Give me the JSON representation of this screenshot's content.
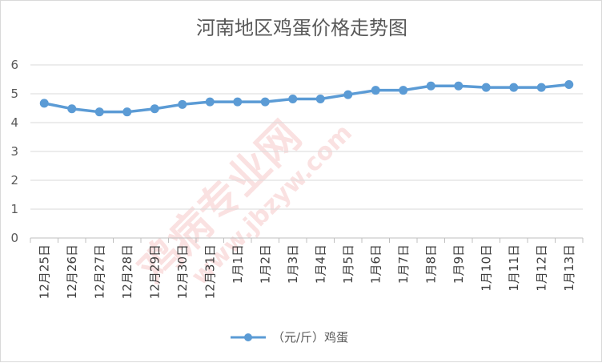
{
  "chart_data": {
    "type": "line",
    "title": "河南地区鸡蛋价格走势图",
    "categories": [
      "12月25日",
      "12月26日",
      "12月27日",
      "12月28日",
      "12月29日",
      "12月30日",
      "12月31日",
      "1月1日",
      "1月2日",
      "1月3日",
      "1月4日",
      "1月5日",
      "1月6日",
      "1月7日",
      "1月8日",
      "1月9日",
      "1月10日",
      "1月11日",
      "1月12日",
      "1月13日"
    ],
    "series": [
      {
        "name": "（元/斤）鸡蛋",
        "values": [
          4.67,
          4.48,
          4.37,
          4.37,
          4.48,
          4.63,
          4.72,
          4.72,
          4.72,
          4.82,
          4.82,
          4.97,
          5.12,
          5.12,
          5.27,
          5.27,
          5.22,
          5.22,
          5.22,
          5.32
        ]
      }
    ],
    "yticks": [
      "0",
      "1",
      "2",
      "3",
      "4",
      "5",
      "6"
    ],
    "ylim": [
      0,
      6
    ],
    "grid": true,
    "legend": "bottom",
    "colors": {
      "series": "#5b9bd5"
    }
  }
}
